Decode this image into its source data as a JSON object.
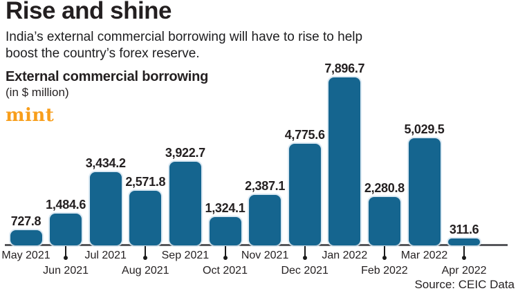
{
  "header": {
    "title": "Rise and shine",
    "subtitle": "India’s external commercial borrowing will have to rise to help boost the country’s forex reserve."
  },
  "chart_header": {
    "title": "External commercial borrowing",
    "units": "(in $ million)"
  },
  "brand": {
    "logo_text": "mint",
    "color": "#f89e1b"
  },
  "source": "Source: CEIC Data",
  "colors": {
    "bar": "#15658f",
    "text": "#231f20",
    "axis": "#55565a"
  },
  "chart_data": {
    "type": "bar",
    "title": "External commercial borrowing",
    "xlabel": "",
    "ylabel": "(in $ million)",
    "categories": [
      "May 2021",
      "Jun 2021",
      "Jul 2021",
      "Aug 2021",
      "Sep 2021",
      "Oct 2021",
      "Nov 2021",
      "Dec 2021",
      "Jan 2022",
      "Feb 2022",
      "Mar 2022",
      "Apr 2022"
    ],
    "values": [
      727.8,
      1484.6,
      3434.2,
      2571.8,
      3922.7,
      1324.1,
      2387.1,
      4775.6,
      7896.7,
      2280.8,
      5029.5,
      311.6
    ],
    "value_labels": [
      "727.8",
      "1,484.6",
      "3,434.2",
      "2,571.8",
      "3,922.7",
      "1,324.1",
      "2,387.1",
      "4,775.6",
      "7,896.7",
      "2,280.8",
      "5,029.5",
      "311.6"
    ],
    "ylim": [
      0,
      7896.7
    ],
    "grid": false,
    "legend": false,
    "bar_color": "#15658f",
    "label_position": "above-bars",
    "x_axis_style": "alternating-rows-with-tick-dots"
  }
}
